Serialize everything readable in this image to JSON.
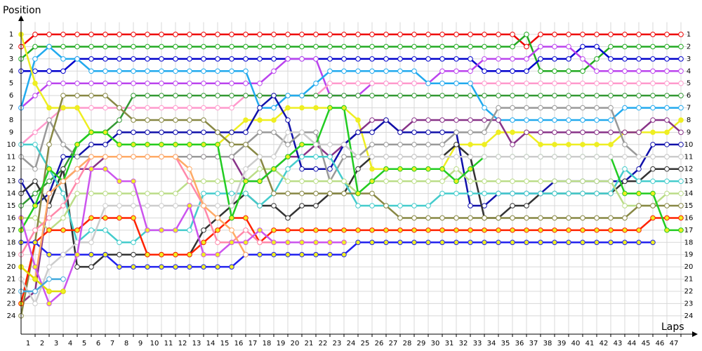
{
  "chart_data": {
    "type": "line",
    "y_label": "Position",
    "x_label": "Laps",
    "grid": true,
    "y_inverted": true,
    "x": [
      0,
      1,
      2,
      3,
      4,
      5,
      6,
      7,
      8,
      9,
      10,
      11,
      12,
      13,
      14,
      15,
      16,
      17,
      18,
      19,
      20,
      21,
      22,
      23,
      24,
      25,
      26,
      27,
      28,
      29,
      30,
      31,
      32,
      33,
      34,
      35,
      36,
      37,
      38,
      39,
      40,
      41,
      42,
      43,
      44,
      45,
      46,
      47
    ],
    "xlim": [
      0,
      47.75
    ],
    "xticks": [
      1,
      2,
      3,
      4,
      5,
      6,
      7,
      8,
      9,
      10,
      11,
      12,
      13,
      14,
      15,
      16,
      17,
      18,
      19,
      20,
      21,
      22,
      23,
      24,
      25,
      26,
      27,
      28,
      29,
      30,
      31,
      32,
      33,
      34,
      35,
      36,
      37,
      38,
      39,
      40,
      41,
      42,
      43,
      44,
      45,
      46,
      47
    ],
    "ylim": [
      0,
      25.5
    ],
    "yticks": [
      1,
      2,
      3,
      4,
      5,
      6,
      7,
      8,
      9,
      10,
      11,
      12,
      13,
      14,
      15,
      16,
      17,
      18,
      19,
      20,
      21,
      22,
      23,
      24
    ],
    "series": [
      {
        "color": "#ee0000",
        "values": [
          2,
          1,
          1,
          1,
          1,
          1,
          1,
          1,
          1,
          1,
          1,
          1,
          1,
          1,
          1,
          1,
          1,
          1,
          1,
          1,
          1,
          1,
          1,
          1,
          1,
          1,
          1,
          1,
          1,
          1,
          1,
          1,
          1,
          1,
          1,
          1,
          2,
          1,
          1,
          1,
          1,
          1,
          1,
          1,
          1,
          1,
          1,
          1
        ]
      },
      {
        "color": "#22aa22",
        "values": [
          3,
          2,
          2,
          2,
          2,
          2,
          2,
          2,
          2,
          2,
          2,
          2,
          2,
          2,
          2,
          2,
          2,
          2,
          2,
          2,
          2,
          2,
          2,
          2,
          2,
          2,
          2,
          2,
          2,
          2,
          2,
          2,
          2,
          2,
          2,
          2,
          1,
          4,
          4,
          4,
          4,
          3,
          2,
          2,
          2,
          2,
          2,
          2
        ]
      },
      {
        "color": "#0000cc",
        "values": [
          4,
          4,
          4,
          4,
          3,
          3,
          3,
          3,
          3,
          3,
          3,
          3,
          3,
          3,
          3,
          3,
          3,
          3,
          3,
          3,
          3,
          3,
          3,
          3,
          3,
          3,
          3,
          3,
          3,
          3,
          3,
          3,
          3,
          4,
          4,
          4,
          4,
          3,
          3,
          3,
          2,
          2,
          3,
          3,
          3,
          3,
          3,
          3
        ]
      },
      {
        "color": "#bb44ee",
        "values": [
          7,
          6,
          5,
          5,
          5,
          5,
          5,
          5,
          5,
          5,
          5,
          5,
          5,
          5,
          5,
          5,
          5,
          5,
          4,
          3,
          3,
          3,
          6,
          6,
          6,
          5,
          5,
          5,
          5,
          5,
          4,
          4,
          4,
          3,
          3,
          3,
          3,
          2,
          2,
          2,
          3,
          4,
          4,
          4,
          4,
          4,
          4,
          4
        ]
      },
      {
        "color": "#ff99cc",
        "values": [
          10,
          9,
          8,
          7,
          7,
          7,
          7,
          7,
          7,
          7,
          7,
          7,
          7,
          7,
          7,
          7,
          6,
          6,
          6,
          6,
          6,
          6,
          5,
          5,
          5,
          5,
          5,
          5,
          5,
          5,
          5,
          5,
          5,
          5,
          5,
          5,
          5,
          5,
          5,
          5,
          5,
          5,
          5,
          5,
          5,
          5,
          5,
          5
        ]
      },
      {
        "color": "#339933",
        "values": [
          15,
          14,
          13,
          12,
          10,
          9,
          9,
          8,
          6,
          6,
          6,
          6,
          6,
          6,
          6,
          6,
          6,
          6,
          6,
          6,
          6,
          6,
          6,
          6,
          6,
          6,
          6,
          6,
          6,
          6,
          6,
          6,
          6,
          6,
          6,
          6,
          6,
          6,
          6,
          6,
          6,
          6,
          6,
          6,
          6,
          6,
          6,
          6
        ]
      },
      {
        "color": "#22aaee",
        "values": [
          7,
          3,
          2,
          3,
          3,
          4,
          4,
          4,
          4,
          4,
          4,
          4,
          4,
          4,
          4,
          4,
          4,
          7,
          7,
          6,
          6,
          5,
          4,
          4,
          4,
          4,
          4,
          4,
          4,
          5,
          5,
          5,
          5,
          7,
          8,
          8,
          8,
          8,
          8,
          8,
          8,
          8,
          8,
          7,
          7,
          7,
          7,
          7
        ]
      },
      {
        "color": "#eeee22",
        "marker_color": "#eeee22",
        "values": [
          1,
          5,
          7,
          7,
          7,
          9,
          9,
          10,
          10,
          10,
          10,
          10,
          10,
          10,
          10,
          9,
          8,
          8,
          8,
          7,
          7,
          7,
          7,
          7,
          8,
          12,
          12,
          12,
          12,
          12,
          12,
          10,
          10,
          10,
          9,
          9,
          9,
          10,
          10,
          10,
          10,
          10,
          10,
          9,
          9,
          9,
          9,
          8
        ]
      },
      {
        "color": "#883388",
        "values": [
          23,
          22,
          14,
          13,
          12,
          12,
          11,
          11,
          11,
          11,
          11,
          11,
          11,
          11,
          11,
          11,
          13,
          13,
          12,
          11,
          11,
          10,
          11,
          10,
          9,
          8,
          8,
          9,
          8,
          8,
          8,
          8,
          8,
          8,
          8,
          10,
          9,
          9,
          9,
          9,
          9,
          9,
          9,
          9,
          9,
          8,
          8,
          9
        ]
      },
      {
        "color": "#1111aa",
        "values": [
          13,
          15,
          14,
          11,
          11,
          10,
          10,
          9,
          9,
          9,
          9,
          9,
          9,
          9,
          9,
          9,
          9,
          7,
          6,
          8,
          12,
          12,
          12,
          10,
          9,
          9,
          8,
          9,
          9,
          9,
          9,
          9,
          15,
          15,
          14,
          14,
          14,
          14,
          13,
          13,
          13,
          13,
          13,
          13,
          12,
          10,
          10,
          10
        ]
      },
      {
        "color": "#999999",
        "values": [
          11,
          12,
          8,
          10,
          11,
          11,
          11,
          11,
          11,
          11,
          11,
          11,
          11,
          11,
          11,
          11,
          10,
          9,
          9,
          10,
          9,
          9,
          13,
          11,
          11,
          10,
          10,
          10,
          10,
          10,
          10,
          9,
          9,
          9,
          7,
          7,
          7,
          7,
          7,
          7,
          7,
          7,
          7,
          10,
          11,
          11,
          11,
          11
        ]
      },
      {
        "color": "#333333",
        "values": [
          14,
          13,
          15,
          12,
          20,
          20,
          19,
          19,
          19,
          19,
          19,
          19,
          19,
          17,
          16,
          15,
          14,
          15,
          15,
          16,
          15,
          15,
          14,
          14,
          12,
          11,
          11,
          11,
          11,
          11,
          11,
          10,
          11,
          16,
          16,
          15,
          15,
          14,
          14,
          14,
          14,
          14,
          14,
          13,
          13,
          12,
          12,
          12
        ]
      },
      {
        "color": "#44cccc",
        "values": [
          10,
          10,
          12,
          14,
          18,
          17,
          17,
          18,
          18,
          17,
          17,
          17,
          17,
          14,
          14,
          14,
          14,
          15,
          14,
          12,
          11,
          11,
          11,
          13,
          15,
          15,
          15,
          15,
          15,
          15,
          14,
          14,
          14,
          14,
          14,
          14,
          14,
          14,
          14,
          14,
          14,
          14,
          14,
          12,
          13,
          13,
          13,
          13
        ]
      },
      {
        "color": "#bbdd88",
        "values": [
          16,
          16,
          17,
          16,
          14,
          14,
          14,
          14,
          14,
          14,
          14,
          14,
          13,
          13,
          13,
          13,
          13,
          12,
          12,
          13,
          13,
          13,
          13,
          13,
          14,
          13,
          13,
          13,
          13,
          13,
          13,
          12,
          13,
          13,
          13,
          13,
          13,
          13,
          13,
          13,
          13,
          13,
          13,
          15,
          15,
          15,
          14,
          14
        ]
      },
      {
        "color": "#888844",
        "values": [
          24,
          18,
          10,
          6,
          6,
          6,
          6,
          7,
          8,
          8,
          8,
          8,
          8,
          8,
          9,
          10,
          10,
          11,
          14,
          14,
          14,
          14,
          14,
          14,
          14,
          14,
          15,
          16,
          16,
          16,
          16,
          16,
          16,
          16,
          16,
          16,
          16,
          16,
          16,
          16,
          16,
          16,
          16,
          16,
          15,
          15,
          15,
          15
        ]
      },
      {
        "color": "#ff2200",
        "marker_color": "#eeee22",
        "values": [
          23,
          18,
          17,
          17,
          17,
          16,
          16,
          16,
          16,
          19,
          19,
          19,
          19,
          18,
          17,
          16,
          16,
          18,
          17,
          17,
          17,
          17,
          17,
          17,
          17,
          17,
          17,
          17,
          17,
          17,
          17,
          17,
          17,
          17,
          17,
          17,
          17,
          17,
          17,
          17,
          17,
          17,
          17,
          17,
          17,
          16,
          16,
          16
        ]
      },
      {
        "color": "#22cc22",
        "marker_color": "#eeee22",
        "values": [
          17,
          15,
          12,
          13,
          10,
          9,
          9,
          10,
          10,
          10,
          10,
          10,
          10,
          10,
          10,
          16,
          13,
          13,
          12,
          11,
          10,
          10,
          7,
          7,
          14,
          13,
          12,
          12,
          12,
          12,
          12,
          13,
          12,
          11,
          11,
          11,
          11,
          11,
          11,
          11,
          11,
          11,
          11,
          14,
          14,
          14,
          17,
          17
        ]
      },
      {
        "color": "#2222ee",
        "marker_color": "#eeee22",
        "values": [
          18,
          18,
          19,
          19,
          19,
          19,
          19,
          20,
          20,
          20,
          20,
          20,
          20,
          20,
          20,
          20,
          19,
          19,
          19,
          19,
          19,
          19,
          19,
          19,
          18,
          18,
          18,
          18,
          18,
          18,
          18,
          18,
          18,
          18,
          18,
          18,
          18,
          18,
          18,
          18,
          18,
          18,
          18,
          18,
          18,
          18,
          null,
          null
        ]
      },
      {
        "color": "#cccccc",
        "values": [
          21,
          23,
          20,
          19,
          18,
          18,
          15,
          15,
          15,
          15,
          15,
          15,
          15,
          15,
          15,
          15,
          12,
          11,
          11,
          9,
          9,
          10,
          10,
          10,
          11,
          11,
          11,
          11,
          11,
          11,
          11,
          11,
          11,
          11,
          11,
          11,
          11,
          11,
          11,
          11,
          11,
          11,
          11,
          11,
          11,
          11,
          11,
          11
        ]
      },
      {
        "color": "#ff88aa",
        "values": [
          19,
          17,
          16,
          15,
          13,
          11,
          11,
          11,
          11,
          11,
          11,
          11,
          13,
          15,
          18,
          18,
          17,
          18,
          18,
          18,
          18,
          18,
          18,
          18,
          null,
          null,
          null,
          null,
          null,
          null,
          null,
          null,
          null,
          null,
          null,
          null,
          null,
          null,
          null,
          null,
          null,
          null,
          null,
          null,
          null,
          null,
          null,
          null
        ]
      },
      {
        "color": "#ffaa66",
        "values": [
          20,
          21,
          14,
          13,
          12,
          11,
          11,
          11,
          11,
          11,
          11,
          11,
          12,
          15,
          16,
          17,
          19,
          null,
          null,
          null,
          null,
          null,
          null,
          null,
          null,
          null,
          null,
          null,
          null,
          null,
          null,
          null,
          null,
          null,
          null,
          null,
          null,
          null,
          null,
          null,
          null,
          null,
          null,
          null,
          null,
          null,
          null,
          null
        ]
      },
      {
        "color": "#cc55ee",
        "marker_color": "#eeee22",
        "values": [
          16,
          20,
          23,
          22,
          19,
          12,
          12,
          13,
          13,
          17,
          17,
          17,
          15,
          19,
          19,
          18,
          18,
          17,
          18,
          18,
          18,
          18,
          18,
          18,
          null,
          null,
          null,
          null,
          null,
          null,
          null,
          null,
          null,
          null,
          null,
          null,
          null,
          null,
          null,
          null,
          null,
          null,
          null,
          null,
          null,
          null,
          null,
          null
        ]
      },
      {
        "color": "#dddd00",
        "marker_color": "#eeee22",
        "values": [
          20,
          21,
          22,
          22,
          null,
          null,
          null,
          null,
          null,
          null,
          null,
          null,
          null,
          null,
          null,
          null,
          null,
          null,
          null,
          null,
          null,
          null,
          null,
          null,
          null,
          null,
          null,
          null,
          null,
          null,
          null,
          null,
          null,
          null,
          null,
          null,
          null,
          null,
          null,
          null,
          null,
          null,
          null,
          null,
          null,
          null,
          null,
          null
        ]
      },
      {
        "color": "#44aadd",
        "values": [
          22,
          22,
          21,
          21,
          null,
          null,
          null,
          null,
          null,
          null,
          null,
          null,
          null,
          null,
          null,
          null,
          null,
          null,
          null,
          null,
          null,
          null,
          null,
          null,
          null,
          null,
          null,
          null,
          null,
          null,
          null,
          null,
          null,
          null,
          null,
          null,
          null,
          null,
          null,
          null,
          null,
          null,
          null,
          null,
          null,
          null,
          null,
          null
        ]
      }
    ]
  }
}
